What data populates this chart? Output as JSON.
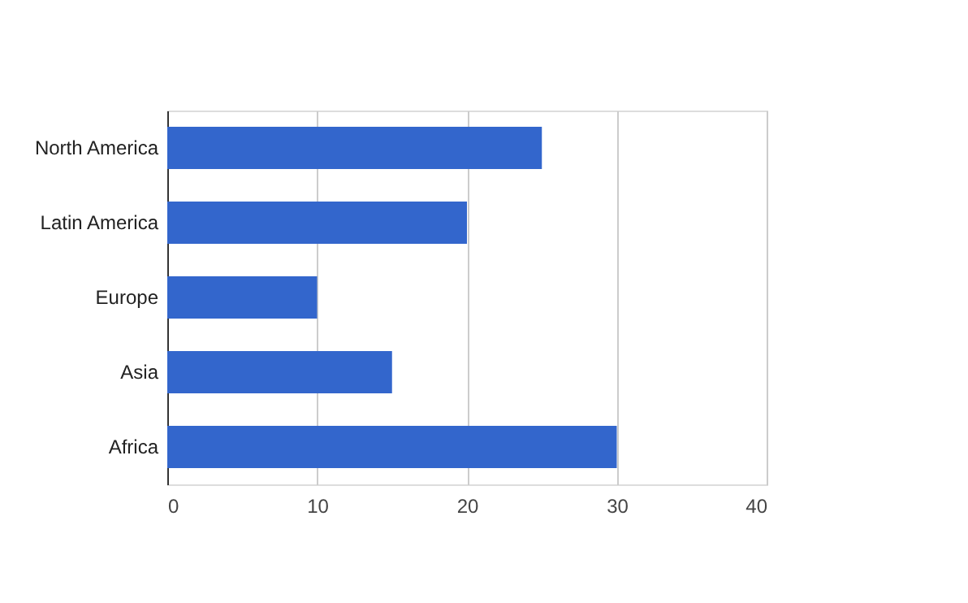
{
  "chart_data": {
    "type": "bar",
    "orientation": "horizontal",
    "categories": [
      "North America",
      "Latin America",
      "Europe",
      "Asia",
      "Africa"
    ],
    "series": [
      {
        "color": "#3366cc",
        "values": [
          25,
          20,
          10,
          15,
          30
        ]
      }
    ],
    "xlim": [
      0,
      40
    ],
    "xticks": [
      0,
      10,
      20,
      30,
      40
    ],
    "grid": "x"
  }
}
